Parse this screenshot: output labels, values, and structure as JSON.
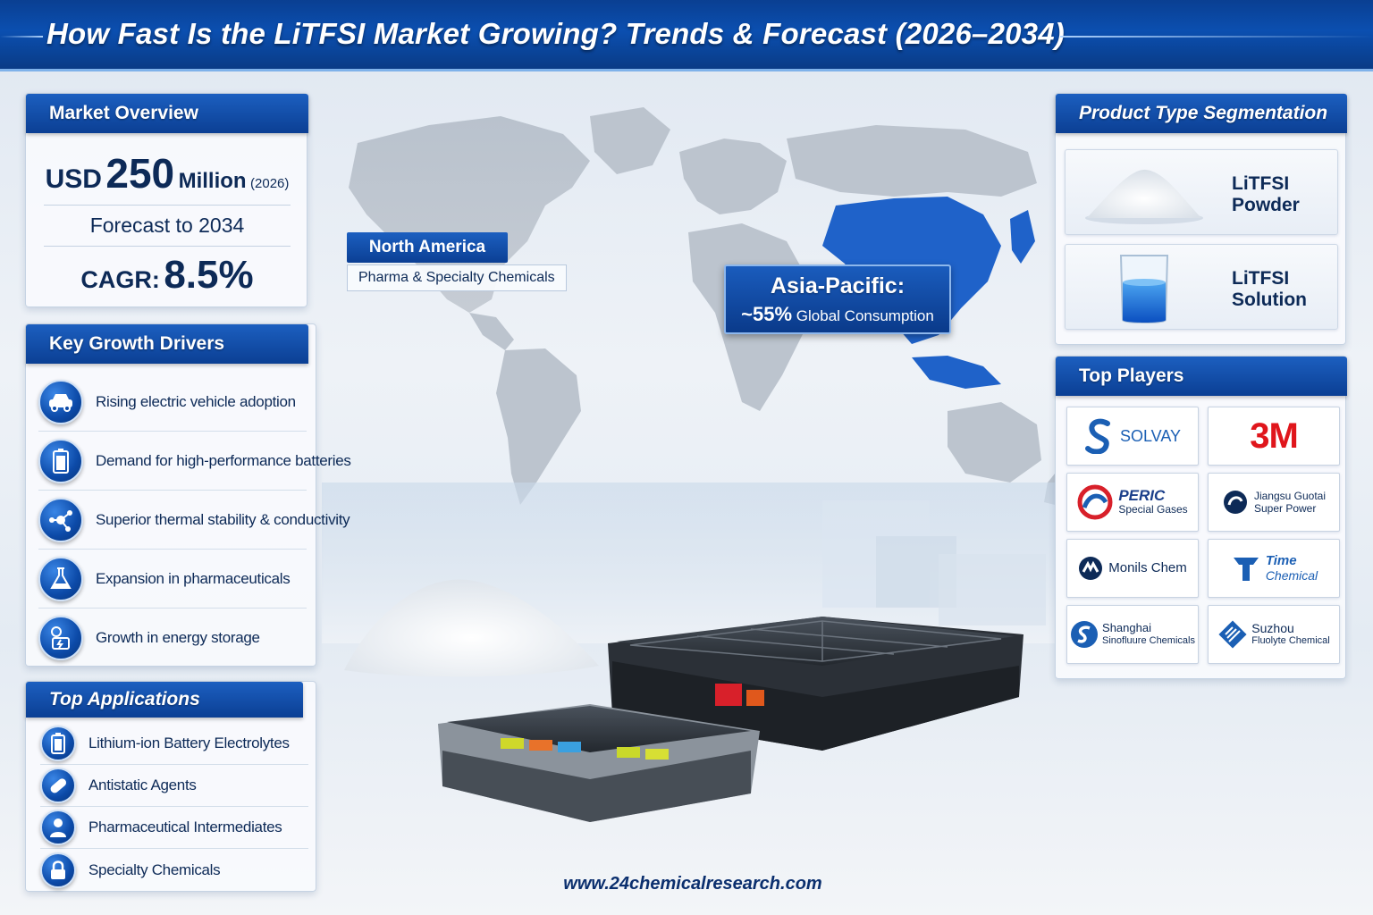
{
  "header": {
    "title": "How Fast Is the LiTFSI Market Growing? Trends & Forecast (2026–2034)"
  },
  "overview": {
    "title": "Market Overview",
    "currency": "USD",
    "value": "250",
    "unit": "Million",
    "base_year": "(2026)",
    "forecast_label": "Forecast to 2034",
    "cagr_label": "CAGR:",
    "cagr_value": "8.5%"
  },
  "drivers": {
    "title": "Key Growth Drivers",
    "items": [
      {
        "label": "Rising electric vehicle adoption",
        "icon": "car-icon"
      },
      {
        "label": "Demand for high-performance batteries",
        "icon": "battery-icon"
      },
      {
        "label": "Superior thermal stability & conductivity",
        "icon": "molecule-icon"
      },
      {
        "label": "Expansion in pharmaceuticals",
        "icon": "flask-icon"
      },
      {
        "label": "Growth in energy storage",
        "icon": "energy-storage-icon"
      }
    ]
  },
  "applications": {
    "title": "Top Applications",
    "items": [
      {
        "label": "Lithium-ion Battery Electrolytes",
        "icon": "battery-icon"
      },
      {
        "label": "Antistatic Agents",
        "icon": "capsule-icon"
      },
      {
        "label": "Pharmaceutical Intermediates",
        "icon": "person-icon"
      },
      {
        "label": "Specialty Chemicals",
        "icon": "lock-icon"
      }
    ]
  },
  "regions": {
    "north_america": {
      "title": "North America",
      "subtitle": "Pharma & Specialty Chemicals"
    },
    "asia_pacific": {
      "title": "Asia-Pacific:",
      "share": "~55%",
      "subtitle": "Global Consumption"
    }
  },
  "segmentation": {
    "title": "Product Type Segmentation",
    "items": [
      {
        "line1": "LiTFSI",
        "line2": "Powder",
        "icon": "powder-pile-icon"
      },
      {
        "line1": "LiTFSI",
        "line2": "Solution",
        "icon": "beaker-icon"
      }
    ]
  },
  "players": {
    "title": "Top Players",
    "items": [
      {
        "name": "SOLVAY"
      },
      {
        "name": "3M"
      },
      {
        "name": "PERIC",
        "sub": "Special Gases"
      },
      {
        "name": "Jiangsu Guotai",
        "sub": "Super Power"
      },
      {
        "name": "Monils Chem"
      },
      {
        "name": "Time",
        "sub": "Chemical"
      },
      {
        "name": "Shanghai",
        "sub": "Sinofluure Chemicals"
      },
      {
        "name": "Suzhou",
        "sub": "Fluolyte Chemical"
      }
    ]
  },
  "footer": {
    "url": "www.24chemicalresearch.com"
  },
  "colors": {
    "brand_blue": "#0b4fb0",
    "dark_navy": "#0d2a57",
    "solvay_blue": "#1b5fb4",
    "red_3m": "#e0161c"
  }
}
